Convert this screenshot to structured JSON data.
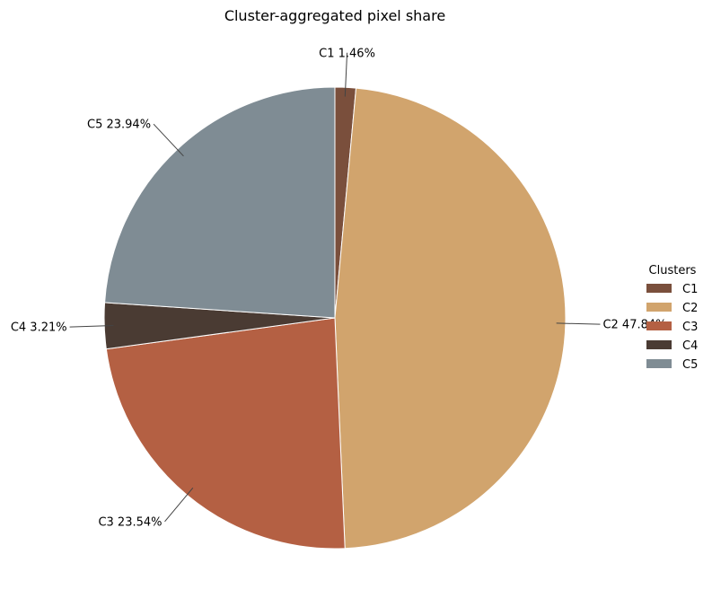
{
  "chart_data": {
    "type": "pie",
    "title": "Cluster-aggregated pixel share",
    "slices": [
      {
        "name": "C1",
        "value": 1.46,
        "label": "C1 1.46%",
        "color": "#7a4f3c"
      },
      {
        "name": "C2",
        "value": 47.84,
        "label": "C2 47.84%",
        "color": "#d1a46d"
      },
      {
        "name": "C3",
        "value": 23.54,
        "label": "C3 23.54%",
        "color": "#b46043"
      },
      {
        "name": "C4",
        "value": 3.21,
        "label": "C4 3.21%",
        "color": "#4a3b33"
      },
      {
        "name": "C5",
        "value": 23.94,
        "label": "C5 23.94%",
        "color": "#7f8c94"
      }
    ],
    "start_angle_deg": 90,
    "direction": "clockwise",
    "legend": {
      "title": "Clusters",
      "position": "right"
    }
  }
}
